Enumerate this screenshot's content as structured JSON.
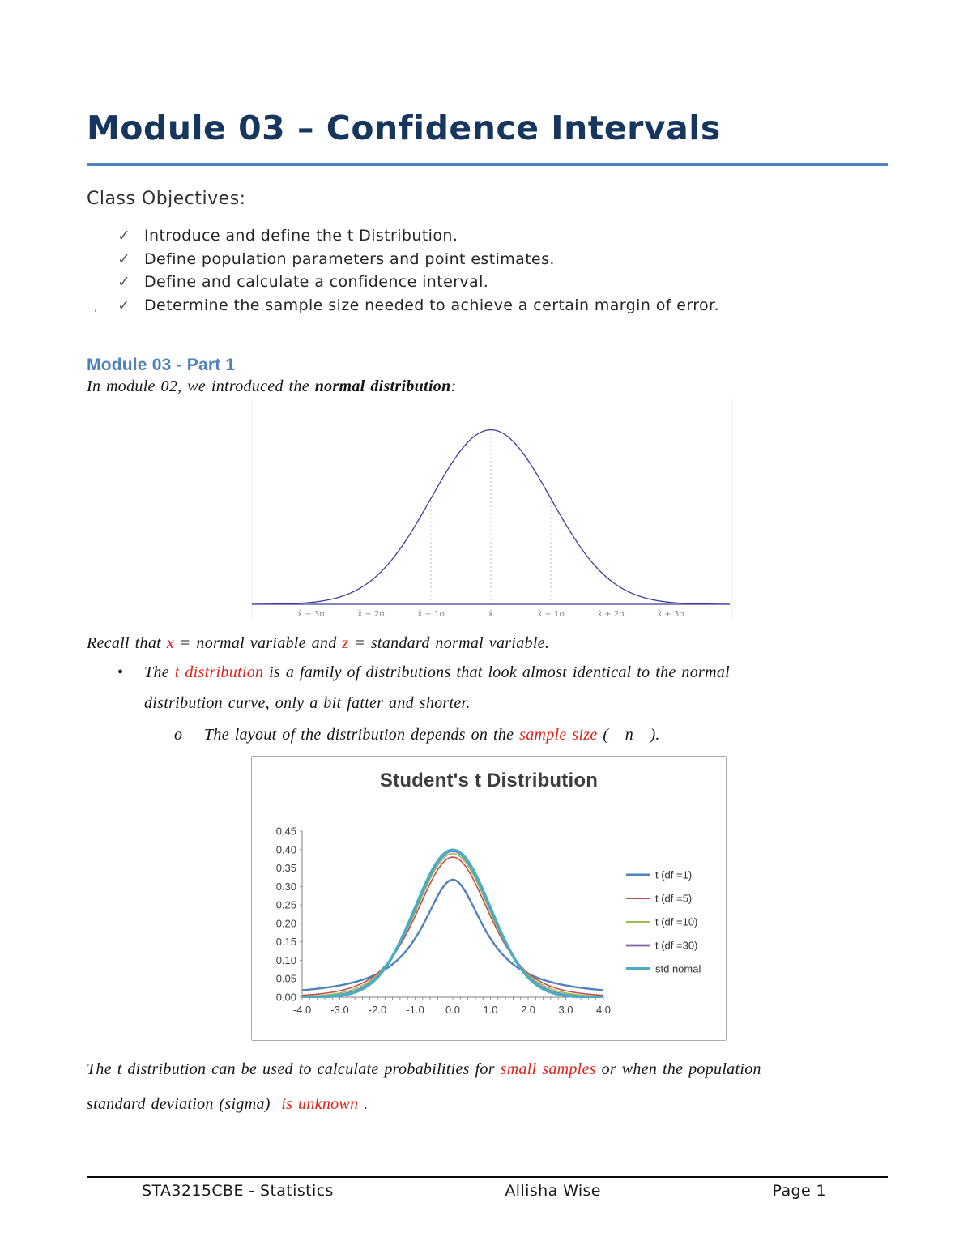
{
  "document": {
    "title": "Module 03 – Confidence Intervals",
    "objectives": {
      "heading": "Class Objectives:",
      "checkmark": "✓",
      "items": [
        "Introduce and define the t Distribution.",
        "Define population parameters and point estimates.",
        "Define and calculate a confidence interval.",
        "Determine the sample size needed to achieve a certain margin of error."
      ]
    },
    "stray_mark": "‘",
    "part1_heading": "Module 03 - Part 1",
    "intro": {
      "pre": "In module 02, we introduced the ",
      "bold": "normal distribution",
      "post": ":"
    },
    "recall": {
      "pre": "Recall that ",
      "x": "x",
      "mid": " = normal variable and ",
      "z": "z",
      "post": " = standard normal variable."
    },
    "bullet_t": {
      "marker": "•",
      "line1_pre": "The ",
      "line1_red": "t distribution",
      "line1_post": " is a family of distributions that look almost identical to the normal",
      "line2": "distribution curve, only a bit fatter and shorter."
    },
    "bullet_layout": {
      "marker": "o",
      "pre": "The layout of the distribution depends on the ",
      "red": "sample size",
      "mid": " (   ",
      "n": "n",
      "post": "   )."
    },
    "closing": {
      "line1_pre": "The t distribution can be used to calculate probabilities for ",
      "line1_red": "small samples",
      "line1_post": " or when the population",
      "line2_pre": "standard deviation (sigma)  ",
      "line2_red": "is unknown",
      "line2_post": " ."
    },
    "footer": {
      "course": "STA3215CBE - Statistics",
      "author": "Allisha Wise",
      "page": "Page 1"
    },
    "colors": {
      "title_navy": "#17365d",
      "heading_blue": "#4f81bd",
      "red_text": "#e02018"
    }
  },
  "chart_data": [
    {
      "name": "normal-distribution-curve",
      "type": "line",
      "title": "",
      "curve": "standard_normal_pdf",
      "xlim": [
        -4,
        4
      ],
      "ylim": [
        0,
        0.45
      ],
      "x_tick_positions": [
        -3,
        -2,
        -1,
        0,
        1,
        2,
        3
      ],
      "x_tick_labels": [
        "x̄ − 3σ",
        "x̄ − 2σ",
        "x̄ − 1σ",
        "x̄",
        "x̄ + 1σ",
        "x̄ + 2σ",
        "x̄ + 3σ"
      ],
      "reference_lines_at_sigma": [
        -1,
        0,
        1
      ],
      "line_color": "#3d3d9e",
      "axis_color": "#3d3d9e",
      "grid": false
    },
    {
      "name": "students-t-distribution",
      "type": "line",
      "title": "Student's t Distribution",
      "xlim": [
        -4,
        4
      ],
      "ylim": [
        0,
        0.45
      ],
      "x_tick_labels": [
        "-4.0",
        "-3.0",
        "-2.0",
        "-1.0",
        "0.0",
        "1.0",
        "2.0",
        "3.0",
        "4.0"
      ],
      "y_tick_labels": [
        "0.00",
        "0.05",
        "0.10",
        "0.15",
        "0.20",
        "0.25",
        "0.30",
        "0.35",
        "0.40",
        "0.45"
      ],
      "legend_position": "right",
      "grid": false,
      "series": [
        {
          "name": "t (df =1)",
          "pdf": "student_t",
          "df": 1,
          "color": "#4f81bd",
          "width": 2.4
        },
        {
          "name": "t (df =5)",
          "pdf": "student_t",
          "df": 5,
          "color": "#c0504d",
          "width": 1.6
        },
        {
          "name": "t (df =10)",
          "pdf": "student_t",
          "df": 10,
          "color": "#9bbb59",
          "width": 1.6
        },
        {
          "name": "t (df =30)",
          "pdf": "student_t",
          "df": 30,
          "color": "#8064a2",
          "width": 2.2
        },
        {
          "name": "std nomal",
          "pdf": "standard_normal",
          "df": null,
          "color": "#4bacc6",
          "width": 3.6
        }
      ]
    }
  ]
}
